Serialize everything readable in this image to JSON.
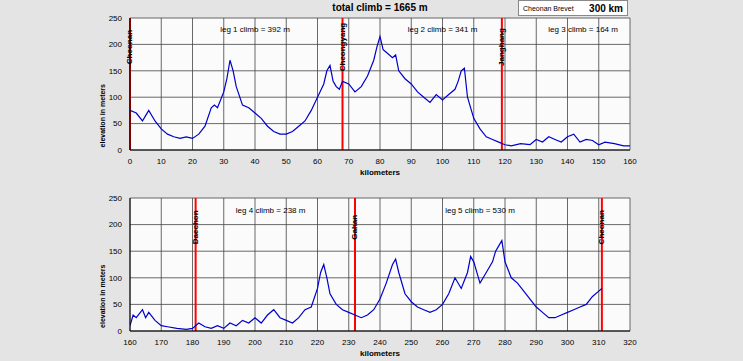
{
  "title": "total climb = 1665 m",
  "legend_box": {
    "lines": [
      "Cheonan Brevet",
      "300 km"
    ]
  },
  "chart_data": [
    {
      "type": "line",
      "color": "#0000cc",
      "grid": true,
      "x_label": "kilometers",
      "y_label": "elevation in meters",
      "xlim": [
        0,
        160
      ],
      "xticks": [
        0,
        10,
        20,
        30,
        40,
        50,
        60,
        70,
        80,
        90,
        100,
        110,
        120,
        130,
        140,
        150,
        160
      ],
      "ylim": [
        0,
        250
      ],
      "yticks": [
        0,
        50,
        100,
        150,
        200,
        250
      ],
      "x": [
        0,
        2,
        4,
        5,
        6,
        8,
        10,
        12,
        14,
        16,
        18,
        20,
        22,
        24,
        26,
        27,
        28,
        30,
        31,
        32,
        33,
        34,
        36,
        38,
        40,
        42,
        44,
        46,
        48,
        50,
        52,
        54,
        56,
        58,
        60,
        62,
        63,
        64,
        65,
        66,
        67,
        68,
        70,
        72,
        74,
        76,
        78,
        79,
        80,
        81,
        82,
        84,
        85,
        86,
        88,
        90,
        92,
        94,
        96,
        98,
        100,
        102,
        104,
        105,
        106,
        107,
        108,
        110,
        112,
        114,
        116,
        118,
        120,
        122,
        125,
        128,
        130,
        132,
        134,
        136,
        138,
        140,
        142,
        144,
        146,
        148,
        150,
        152,
        155,
        158,
        160
      ],
      "values": [
        75,
        70,
        55,
        65,
        75,
        55,
        40,
        30,
        25,
        22,
        25,
        22,
        30,
        45,
        80,
        85,
        80,
        110,
        135,
        170,
        150,
        120,
        85,
        80,
        70,
        60,
        45,
        35,
        30,
        30,
        35,
        45,
        55,
        75,
        100,
        125,
        150,
        160,
        130,
        120,
        115,
        130,
        125,
        110,
        120,
        140,
        170,
        195,
        215,
        190,
        185,
        175,
        180,
        150,
        135,
        125,
        110,
        100,
        90,
        105,
        95,
        105,
        115,
        130,
        150,
        155,
        100,
        60,
        40,
        25,
        20,
        15,
        10,
        8,
        12,
        10,
        20,
        15,
        25,
        20,
        15,
        25,
        30,
        15,
        20,
        18,
        10,
        15,
        12,
        8,
        8
      ],
      "checkpoints": [
        {
          "label": "Cheonan",
          "x": 0
        },
        {
          "label": "Cheongyang",
          "x": 68
        },
        {
          "label": "Janghang",
          "x": 119
        }
      ],
      "annotations": [
        {
          "text": "leg 1 climb = 392 m",
          "x": 40,
          "y": 228
        },
        {
          "text": "leg 2 climb = 341 m",
          "x": 100,
          "y": 228
        },
        {
          "text": "leg 3 climb = 164 m",
          "x": 145,
          "y": 228
        }
      ]
    },
    {
      "type": "line",
      "color": "#0000cc",
      "grid": true,
      "x_label": "kilometers",
      "y_label": "elevation in meters",
      "xlim": [
        160,
        320
      ],
      "xticks": [
        160,
        170,
        180,
        190,
        200,
        210,
        220,
        230,
        240,
        250,
        260,
        270,
        280,
        290,
        300,
        310,
        320
      ],
      "ylim": [
        0,
        250
      ],
      "yticks": [
        0,
        50,
        100,
        150,
        200,
        250
      ],
      "x": [
        160,
        161,
        162,
        164,
        165,
        166,
        168,
        170,
        172,
        175,
        178,
        180,
        182,
        184,
        186,
        188,
        190,
        192,
        194,
        196,
        198,
        200,
        202,
        204,
        206,
        208,
        210,
        212,
        214,
        216,
        218,
        220,
        221,
        222,
        223,
        224,
        226,
        228,
        230,
        232,
        234,
        236,
        238,
        240,
        242,
        244,
        245,
        246,
        248,
        250,
        252,
        254,
        256,
        258,
        260,
        262,
        264,
        266,
        268,
        269,
        270,
        272,
        274,
        276,
        277,
        278,
        279,
        280,
        282,
        284,
        286,
        288,
        290,
        292,
        294,
        296,
        298,
        300,
        302,
        304,
        306,
        308,
        310,
        311
      ],
      "values": [
        10,
        30,
        25,
        40,
        25,
        35,
        20,
        10,
        8,
        5,
        3,
        5,
        15,
        8,
        5,
        10,
        5,
        15,
        10,
        20,
        15,
        25,
        15,
        30,
        40,
        25,
        20,
        15,
        25,
        40,
        45,
        80,
        110,
        125,
        100,
        70,
        50,
        40,
        35,
        30,
        25,
        30,
        40,
        60,
        90,
        125,
        135,
        110,
        70,
        55,
        45,
        40,
        35,
        40,
        50,
        70,
        100,
        80,
        110,
        140,
        130,
        90,
        110,
        130,
        150,
        160,
        170,
        130,
        100,
        90,
        75,
        60,
        45,
        35,
        25,
        25,
        30,
        35,
        40,
        45,
        50,
        65,
        75,
        80
      ],
      "checkpoints": [
        {
          "label": "Daechon",
          "x": 181
        },
        {
          "label": "Gahan",
          "x": 232
        },
        {
          "label": "Cheonan",
          "x": 311
        }
      ],
      "annotations": [
        {
          "text": "leg 4 climb = 238 m",
          "x": 205,
          "y": 228
        },
        {
          "text": "leg 5 climb = 530 m",
          "x": 272,
          "y": 228
        }
      ]
    }
  ]
}
